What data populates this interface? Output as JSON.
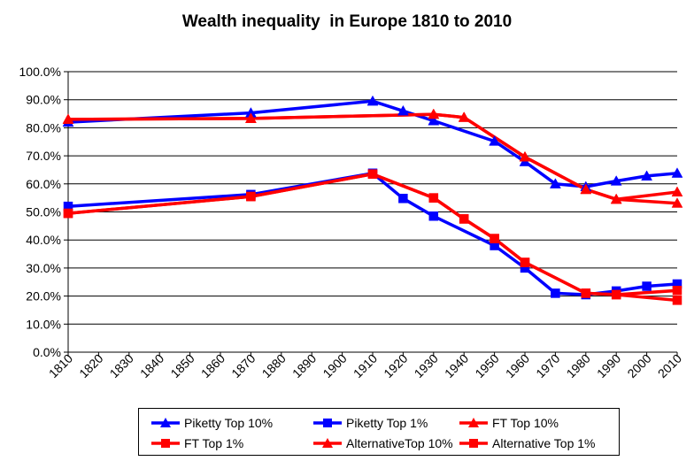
{
  "chart_data": {
    "type": "line",
    "title": "Wealth inequality  in Europe 1810 to 2010",
    "xlabel": "",
    "ylabel": "",
    "x_ticks": [
      "1810",
      "1820",
      "1830",
      "1840",
      "1850",
      "1860",
      "1870",
      "1880",
      "1890",
      "1900",
      "1910",
      "1920",
      "1930",
      "1940",
      "1950",
      "1960",
      "1970",
      "1980",
      "1990",
      "2000",
      "2010"
    ],
    "y_ticks": [
      "0.0%",
      "10.0%",
      "20.0%",
      "30.0%",
      "40.0%",
      "50.0%",
      "60.0%",
      "70.0%",
      "80.0%",
      "90.0%",
      "100.0%"
    ],
    "xlim": [
      1810,
      2010
    ],
    "ylim": [
      0,
      100
    ],
    "grid": "horizontal",
    "legend_position": "bottom",
    "series": [
      {
        "name": "Piketty Top 10%",
        "color": "#0000ff",
        "marker": "triangle",
        "x": [
          1810,
          1870,
          1910,
          1920,
          1930,
          1950,
          1960,
          1970,
          1980,
          1990,
          2000,
          2010
        ],
        "y": [
          82.0,
          85.3,
          89.5,
          86.0,
          82.5,
          75.2,
          67.9,
          60.0,
          59.0,
          61.0,
          62.8,
          63.8
        ]
      },
      {
        "name": "Piketty Top 1%",
        "color": "#0000ff",
        "marker": "square",
        "x": [
          1810,
          1870,
          1910,
          1920,
          1930,
          1950,
          1960,
          1970,
          1980,
          1990,
          2000,
          2010
        ],
        "y": [
          52.0,
          56.2,
          63.8,
          54.8,
          48.5,
          38.0,
          30.0,
          21.0,
          20.5,
          21.8,
          23.5,
          24.3
        ]
      },
      {
        "name": "FT Top 10%",
        "color": "#ff0000",
        "marker": "triangle",
        "x": [
          1810,
          1870,
          1930,
          1940,
          1960,
          1980,
          1990,
          2010
        ],
        "y": [
          83.0,
          83.3,
          84.8,
          83.7,
          69.6,
          58.0,
          54.5,
          53.1
        ]
      },
      {
        "name": "FT Top 1%",
        "color": "#ff0000",
        "marker": "square",
        "x": [
          1810,
          1870,
          1910,
          1930,
          1940,
          1950,
          1960,
          1980,
          1990,
          2010
        ],
        "y": [
          49.5,
          55.5,
          63.5,
          55.0,
          47.5,
          40.5,
          32.0,
          21.0,
          20.5,
          18.5
        ]
      },
      {
        "name": "AlternativeTop 10%",
        "color": "#ff0000",
        "marker": "triangle",
        "x": [
          1810,
          1870,
          1930,
          1940,
          1960,
          1980,
          1990,
          2010
        ],
        "y": [
          83.0,
          83.3,
          84.8,
          83.7,
          69.6,
          58.0,
          54.5,
          57.1
        ]
      },
      {
        "name": "Alternative Top 1%",
        "color": "#ff0000",
        "marker": "square",
        "x": [
          1810,
          1870,
          1910,
          1930,
          1940,
          1950,
          1960,
          1980,
          1990,
          2010
        ],
        "y": [
          49.5,
          55.5,
          63.5,
          55.0,
          47.5,
          40.5,
          32.0,
          21.0,
          20.5,
          22.0
        ]
      }
    ]
  }
}
